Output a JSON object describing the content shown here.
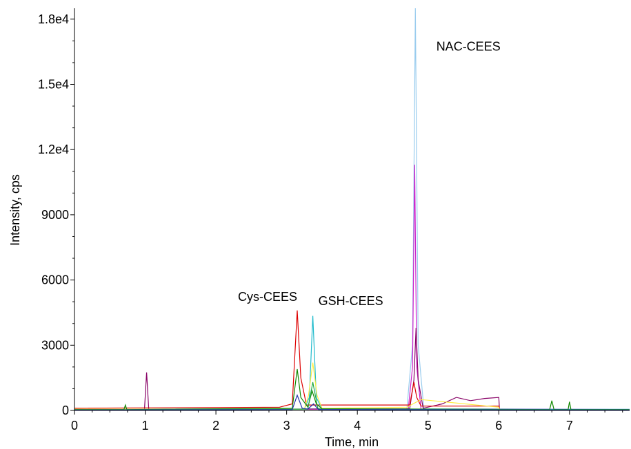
{
  "chart_data": {
    "type": "line",
    "xlabel": "Time, min",
    "ylabel": "Intensity, cps",
    "xlim": [
      0,
      7.85
    ],
    "ylim": [
      0,
      18500
    ],
    "x_ticks": [
      0,
      1,
      2,
      3,
      4,
      5,
      6,
      7
    ],
    "y_ticks": [
      {
        "value": 0,
        "label": "0"
      },
      {
        "value": 3000,
        "label": "3000"
      },
      {
        "value": 6000,
        "label": "6000"
      },
      {
        "value": 9000,
        "label": "9000"
      },
      {
        "value": 12000,
        "label": "1.2e4"
      },
      {
        "value": 15000,
        "label": "1.5e4"
      },
      {
        "value": 18000,
        "label": "1.8e4"
      }
    ],
    "annotations": [
      {
        "text": "Cys-CEES",
        "x": 3.15,
        "y": 4600
      },
      {
        "text": "GSH-CEES",
        "x": 3.37,
        "y": 4400
      },
      {
        "text": "NAC-CEES",
        "x": 4.98,
        "y": 17500
      }
    ],
    "series": [
      {
        "color": "#99ccee",
        "x": [
          0,
          4.7,
          4.78,
          4.82,
          4.86,
          4.94,
          7.85
        ],
        "y": [
          60,
          80,
          3000,
          18500,
          3000,
          80,
          60
        ]
      },
      {
        "color": "#cc22cc",
        "x": [
          0,
          4.72,
          4.78,
          4.81,
          4.84,
          4.9,
          7.85
        ],
        "y": [
          40,
          60,
          2000,
          11300,
          2000,
          60,
          40
        ]
      },
      {
        "color": "#880066",
        "x": [
          0,
          0.99,
          1.02,
          1.05,
          4.74,
          4.8,
          4.83,
          4.86,
          4.93,
          5.2,
          5.4,
          5.6,
          5.8,
          6.0,
          6.01,
          7.85
        ],
        "y": [
          40,
          40,
          1750,
          40,
          80,
          1400,
          3800,
          1400,
          100,
          300,
          600,
          450,
          550,
          600,
          30,
          30
        ]
      },
      {
        "color": "#dd0000",
        "x": [
          0,
          2.9,
          3.08,
          3.15,
          3.2,
          3.28,
          4.74,
          4.8,
          4.84,
          4.9,
          6.0,
          6.01,
          7.85
        ],
        "y": [
          100,
          150,
          300,
          4600,
          1500,
          250,
          250,
          1300,
          600,
          200,
          200,
          30,
          30
        ]
      },
      {
        "color": "#22bbcc",
        "x": [
          0,
          3.25,
          3.32,
          3.37,
          3.42,
          3.5,
          7.85
        ],
        "y": [
          40,
          60,
          600,
          4350,
          600,
          60,
          40
        ]
      },
      {
        "color": "#ffee44",
        "x": [
          0,
          3.25,
          3.31,
          3.37,
          3.43,
          3.5,
          4.7,
          4.9,
          6.0,
          6.01,
          7.85
        ],
        "y": [
          60,
          60,
          700,
          2200,
          700,
          100,
          150,
          500,
          150,
          20,
          20
        ]
      },
      {
        "color": "#118800",
        "x": [
          0,
          0.7,
          0.72,
          0.74,
          3.08,
          3.15,
          3.2,
          3.3,
          3.36,
          3.42,
          3.5,
          6.72,
          6.75,
          6.78,
          6.98,
          7.0,
          7.02,
          7.85
        ],
        "y": [
          40,
          40,
          250,
          40,
          100,
          1900,
          600,
          150,
          900,
          300,
          80,
          40,
          450,
          40,
          40,
          400,
          40,
          40
        ]
      },
      {
        "color": "#22aa44",
        "x": [
          0,
          3.3,
          3.37,
          3.44,
          3.5,
          7.85
        ],
        "y": [
          30,
          60,
          1300,
          100,
          50,
          30
        ]
      },
      {
        "color": "#2233aa",
        "x": [
          0,
          3.08,
          3.15,
          3.22,
          3.3,
          3.38,
          3.45,
          7.85
        ],
        "y": [
          20,
          40,
          700,
          100,
          60,
          300,
          40,
          20
        ]
      }
    ]
  }
}
